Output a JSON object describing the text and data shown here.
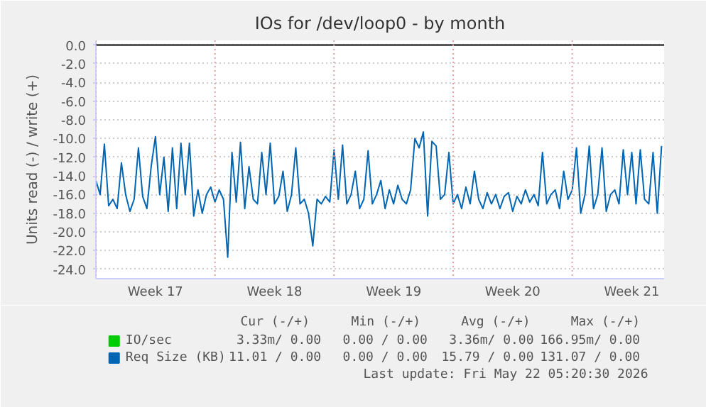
{
  "chart_data": {
    "type": "line",
    "title": "IOs for /dev/loop0 - by month",
    "ylabel": "Units read (-) / write (+)",
    "x": [
      "2026-04-20T00:00",
      "2026-04-20T06:00",
      "2026-04-20T12:00",
      "2026-04-20T18:00",
      "2026-04-21T00:00",
      "2026-04-21T06:00",
      "2026-04-21T12:00",
      "2026-04-21T18:00",
      "2026-04-22T00:00",
      "2026-04-22T06:00",
      "2026-04-22T12:00",
      "2026-04-22T18:00",
      "2026-04-23T00:00",
      "2026-04-23T06:00",
      "2026-04-23T12:00",
      "2026-04-23T18:00",
      "2026-04-24T00:00",
      "2026-04-24T06:00",
      "2026-04-24T12:00",
      "2026-04-24T18:00",
      "2026-04-25T00:00",
      "2026-04-25T06:00",
      "2026-04-25T12:00",
      "2026-04-25T18:00",
      "2026-04-26T00:00",
      "2026-04-26T06:00",
      "2026-04-26T12:00",
      "2026-04-26T18:00",
      "2026-04-27T00:00",
      "2026-04-27T06:00",
      "2026-04-27T12:00",
      "2026-04-27T18:00",
      "2026-04-28T00:00",
      "2026-04-28T06:00",
      "2026-04-28T12:00",
      "2026-04-28T18:00",
      "2026-04-29T00:00",
      "2026-04-29T06:00",
      "2026-04-29T12:00",
      "2026-04-29T18:00",
      "2026-04-30T00:00",
      "2026-04-30T06:00",
      "2026-04-30T12:00",
      "2026-04-30T18:00",
      "2026-05-01T00:00",
      "2026-05-01T06:00",
      "2026-05-01T12:00",
      "2026-05-01T18:00",
      "2026-05-02T00:00",
      "2026-05-02T06:00",
      "2026-05-02T12:00",
      "2026-05-02T18:00",
      "2026-05-03T00:00",
      "2026-05-03T06:00",
      "2026-05-03T12:00",
      "2026-05-03T18:00",
      "2026-05-04T00:00",
      "2026-05-04T06:00",
      "2026-05-04T12:00",
      "2026-05-04T18:00",
      "2026-05-05T00:00",
      "2026-05-05T06:00",
      "2026-05-05T12:00",
      "2026-05-05T18:00",
      "2026-05-06T00:00",
      "2026-05-06T06:00",
      "2026-05-06T12:00",
      "2026-05-06T18:00",
      "2026-05-07T00:00",
      "2026-05-07T06:00",
      "2026-05-07T12:00",
      "2026-05-07T18:00",
      "2026-05-08T00:00",
      "2026-05-08T06:00",
      "2026-05-08T12:00",
      "2026-05-08T18:00",
      "2026-05-09T00:00",
      "2026-05-09T06:00",
      "2026-05-09T12:00",
      "2026-05-09T18:00",
      "2026-05-10T00:00",
      "2026-05-10T06:00",
      "2026-05-10T12:00",
      "2026-05-10T18:00",
      "2026-05-11T00:00",
      "2026-05-11T06:00",
      "2026-05-11T12:00",
      "2026-05-11T18:00",
      "2026-05-12T00:00",
      "2026-05-12T06:00",
      "2026-05-12T12:00",
      "2026-05-12T18:00",
      "2026-05-13T00:00",
      "2026-05-13T06:00",
      "2026-05-13T12:00",
      "2026-05-13T18:00",
      "2026-05-14T00:00",
      "2026-05-14T06:00",
      "2026-05-14T12:00",
      "2026-05-14T18:00",
      "2026-05-15T00:00",
      "2026-05-15T06:00",
      "2026-05-15T12:00",
      "2026-05-15T18:00",
      "2026-05-16T00:00",
      "2026-05-16T06:00",
      "2026-05-16T12:00",
      "2026-05-16T18:00",
      "2026-05-17T00:00",
      "2026-05-17T06:00",
      "2026-05-17T12:00",
      "2026-05-17T18:00",
      "2026-05-18T00:00",
      "2026-05-18T06:00",
      "2026-05-18T12:00",
      "2026-05-18T18:00",
      "2026-05-19T00:00",
      "2026-05-19T06:00",
      "2026-05-19T12:00",
      "2026-05-19T18:00",
      "2026-05-20T00:00",
      "2026-05-20T06:00",
      "2026-05-20T12:00",
      "2026-05-20T18:00",
      "2026-05-21T00:00",
      "2026-05-21T06:00",
      "2026-05-21T12:00",
      "2026-05-21T18:00",
      "2026-05-22T00:00",
      "2026-05-22T06:00",
      "2026-05-22T12:00",
      "2026-05-22T18:00",
      "2026-05-23T00:00",
      "2026-05-23T06:00"
    ],
    "series": [
      {
        "name": "IO/sec",
        "color": "#00cc00",
        "values": [
          null,
          null,
          null,
          null,
          null,
          null,
          null,
          null,
          null,
          null,
          null,
          null,
          null,
          null,
          null,
          null,
          null,
          null,
          null,
          null,
          null,
          null,
          null,
          null,
          null,
          null,
          null,
          null,
          null,
          null,
          null,
          null,
          null,
          null,
          null,
          null,
          null,
          null,
          null,
          null,
          null,
          null,
          null,
          null,
          null,
          null,
          null,
          null,
          null,
          null,
          null,
          null,
          null,
          null,
          null,
          null,
          null,
          null,
          null,
          null,
          null,
          null,
          null,
          null,
          null,
          null,
          null,
          null,
          null,
          null,
          null,
          null,
          null,
          null,
          null,
          null,
          null,
          null,
          null,
          null,
          null,
          null,
          null,
          null,
          null,
          null,
          null,
          null,
          null,
          null,
          null,
          null,
          null,
          null,
          null,
          null,
          null,
          null,
          null,
          null,
          null,
          null,
          null,
          null,
          null,
          null,
          null,
          null,
          null,
          null,
          null,
          null,
          null,
          null,
          null,
          null,
          null,
          null,
          null,
          null,
          null,
          null,
          null,
          null,
          null,
          null,
          null,
          null,
          null,
          null,
          null,
          null,
          null,
          null
        ]
      },
      {
        "name": "Req Size (KB)",
        "color": "#0066b3",
        "values": [
          -14.5,
          -16,
          -10.6,
          -17.2,
          -16.5,
          -17.5,
          -12.6,
          -16,
          -17.8,
          -16.5,
          -11,
          -16.2,
          -17.5,
          -13,
          -9.8,
          -16,
          -12,
          -17.8,
          -11,
          -17.5,
          -10.5,
          -16,
          -10.5,
          -18.3,
          -15.5,
          -18,
          -16,
          -15.2,
          -16.8,
          -15.5,
          -16.5,
          -22.7,
          -11.5,
          -16.8,
          -10.4,
          -17.5,
          -13,
          -16.5,
          -17,
          -11.5,
          -16,
          -10.5,
          -17,
          -16.2,
          -13.5,
          -17.8,
          -16,
          -11,
          -17,
          -16.5,
          -18,
          -21.5,
          -16.5,
          -17,
          -16.2,
          -16.8,
          -11.2,
          -16.5,
          -10.7,
          -17,
          -16,
          -13.5,
          -17.5,
          -16.5,
          -11.3,
          -17,
          -16,
          -14.5,
          -17.5,
          -15.5,
          -17,
          -15,
          -16.5,
          -17,
          -15.5,
          -10,
          -11,
          -9.3,
          -18.3,
          -10.3,
          -10.8,
          -16.5,
          -16,
          -11.5,
          -17,
          -16,
          -17.5,
          -15.2,
          -17,
          -13.5,
          -16.5,
          -17.5,
          -15.8,
          -17,
          -16,
          -17.5,
          -16.2,
          -15.8,
          -17.8,
          -16.2,
          -17,
          -15.5,
          -16.8,
          -16,
          -17.2,
          -11.5,
          -17,
          -16,
          -15.5,
          -17.5,
          -13.5,
          -16.5,
          -15.5,
          -11,
          -18,
          -16,
          -10.8,
          -17.5,
          -16,
          -11,
          -17.8,
          -16,
          -15.5,
          -17,
          -11.2,
          -16,
          -11.5,
          -17,
          -11.2,
          -16.5,
          -17,
          -11.5,
          -18,
          -10.8
        ]
      }
    ],
    "xlim": [
      "2026-04-20T00:00",
      "2026-05-23T09:36"
    ],
    "xticks": [
      {
        "value": "2026-04-23T12:00",
        "label": "Week 17"
      },
      {
        "value": "2026-04-30T12:00",
        "label": "Week 18"
      },
      {
        "value": "2026-05-07T12:00",
        "label": "Week 19"
      },
      {
        "value": "2026-05-14T12:00",
        "label": "Week 20"
      },
      {
        "value": "2026-05-21T12:00",
        "label": "Week 21"
      }
    ],
    "ylim": [
      -25,
      0.5
    ],
    "yticks": [
      {
        "value": 0,
        "label": "0.0"
      },
      {
        "value": -2,
        "label": "-2.0"
      },
      {
        "value": -4,
        "label": "-4.0"
      },
      {
        "value": -6,
        "label": "-6.0"
      },
      {
        "value": -8,
        "label": "-8.0"
      },
      {
        "value": -10,
        "label": "-10.0"
      },
      {
        "value": -12,
        "label": "-12.0"
      },
      {
        "value": -14,
        "label": "-14.0"
      },
      {
        "value": -16,
        "label": "-16.0"
      },
      {
        "value": -18,
        "label": "-18.0"
      },
      {
        "value": -20,
        "label": "-20.0"
      },
      {
        "value": -22,
        "label": "-22.0"
      },
      {
        "value": -24,
        "label": "-24.0"
      }
    ],
    "grid": "y",
    "ref_lines": [
      {
        "axis": "y",
        "value": 0,
        "color": "#000000",
        "line_style": "solid"
      },
      {
        "axis": "x",
        "value": "2026-04-20",
        "color": "#e8a0a0",
        "line_style": "dotted"
      },
      {
        "axis": "x",
        "value": "2026-04-27",
        "color": "#e8a0a0",
        "line_style": "dotted"
      },
      {
        "axis": "x",
        "value": "2026-05-04",
        "color": "#e8a0a0",
        "line_style": "dotted"
      },
      {
        "axis": "x",
        "value": "2026-05-11",
        "color": "#e8a0a0",
        "line_style": "dotted"
      },
      {
        "axis": "x",
        "value": "2026-05-18",
        "color": "#e8a0a0",
        "line_style": "dotted"
      }
    ],
    "legend": "bottom",
    "annotations": [
      "Cur (-/+)",
      "Min (-/+)",
      "Avg (-/+)",
      "Max (-/+)",
      "3.33m/ 0.00",
      "0.00 / 0.00",
      "3.36m/ 0.00",
      "166.95m/ 0.00",
      "11.01 / 0.00",
      "0.00 / 0.00",
      "15.79 / 0.00",
      "131.07 / 0.00",
      "Last update: Fri May 22 05:20:30 2026"
    ]
  }
}
